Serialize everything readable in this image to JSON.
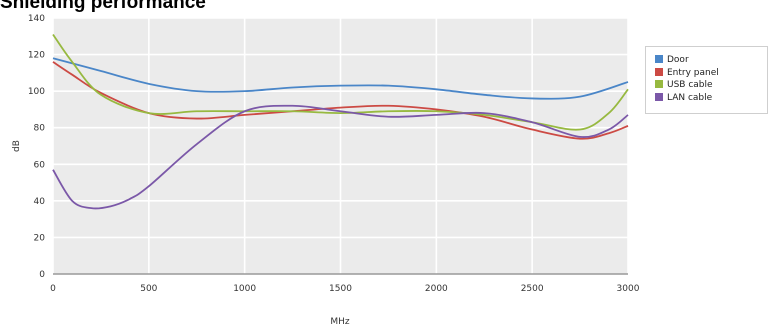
{
  "chart_data": {
    "type": "line",
    "title": "Shielding performance",
    "xlabel": "MHz",
    "ylabel": "dB",
    "xlim": [
      0,
      3000
    ],
    "ylim": [
      0,
      140
    ],
    "xticks": [
      "0",
      "500",
      "1000",
      "1500",
      "2000",
      "2500",
      "3000"
    ],
    "yticks": [
      "0",
      "20",
      "40",
      "60",
      "80",
      "100",
      "120",
      "140"
    ],
    "grid": true,
    "legend_position": "right",
    "series": [
      {
        "name": "Door",
        "color": "#4a86c8",
        "x": [
          0,
          250,
          500,
          750,
          1000,
          1250,
          1500,
          1750,
          2000,
          2250,
          2500,
          2750,
          3000
        ],
        "y": [
          118,
          111,
          104,
          100,
          100,
          102,
          103,
          103,
          101,
          98,
          96,
          97,
          105
        ]
      },
      {
        "name": "Entry panel",
        "color": "#cc4a44",
        "x": [
          0,
          100,
          250,
          500,
          750,
          1000,
          1250,
          1500,
          1750,
          2000,
          2250,
          2500,
          2750,
          2900,
          3000
        ],
        "y": [
          116,
          109,
          99,
          88,
          85,
          87,
          89,
          91,
          92,
          90,
          86,
          79,
          74,
          77,
          81
        ]
      },
      {
        "name": "USB cable",
        "color": "#97b940",
        "x": [
          0,
          100,
          250,
          500,
          750,
          1000,
          1250,
          1500,
          1750,
          2000,
          2250,
          2500,
          2750,
          2900,
          3000
        ],
        "y": [
          131,
          116,
          98,
          88,
          89,
          89,
          89,
          88,
          89,
          89,
          87,
          83,
          79,
          88,
          101
        ]
      },
      {
        "name": "LAN cable",
        "color": "#7b58a8",
        "x": [
          0,
          100,
          200,
          300,
          400,
          500,
          750,
          1000,
          1250,
          1500,
          1750,
          2000,
          2250,
          2500,
          2750,
          2900,
          3000
        ],
        "y": [
          57,
          40,
          36,
          37,
          41,
          48,
          71,
          89,
          92,
          89,
          86,
          87,
          88,
          83,
          75,
          79,
          87
        ]
      }
    ]
  }
}
